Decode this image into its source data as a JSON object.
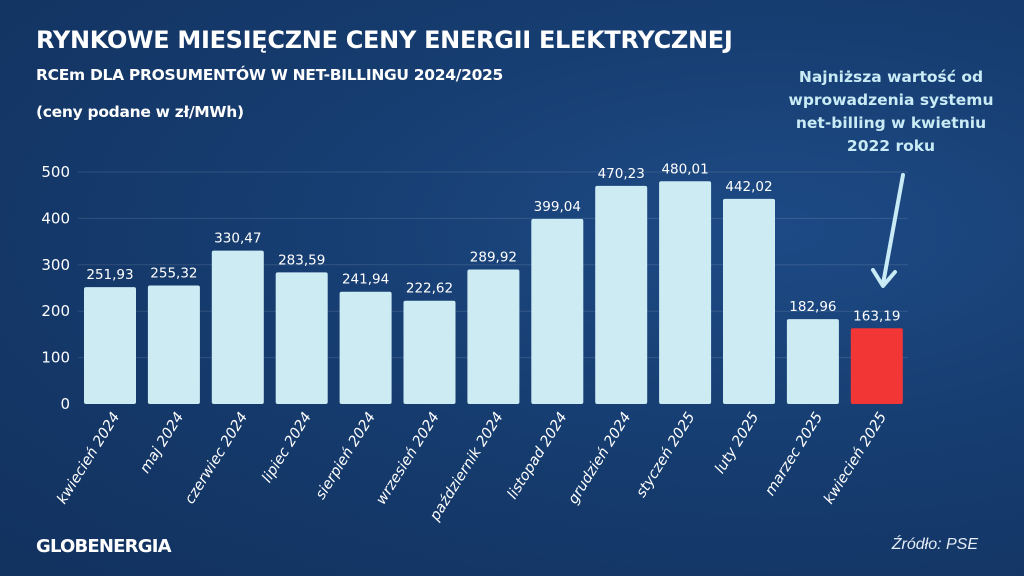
{
  "header": {
    "title": "RYNKOWE MIESIĘCZNE CENY ENERGII ELEKTRYCZNEJ",
    "subtitle": "RCEm DLA PROSUMENTÓW W NET-BILLINGU 2024/2025",
    "unit_note": "(ceny podane w zł/MWh)"
  },
  "annotation": "Najniższa wartość od wprowadzenia systemu net-billing w kwietniu 2022 roku",
  "footer": {
    "logo": "GLOBENERGIA",
    "source": "Źródło: PSE"
  },
  "colors": {
    "bar": "#cdebf3",
    "highlight": "#f23636",
    "background": "#153a6c",
    "annotation": "#c8ebf5"
  },
  "chart_data": {
    "type": "bar",
    "title": "RYNKOWE MIESIĘCZNE CENY ENERGII ELEKTRYCZNEJ",
    "ylabel": "",
    "xlabel": "",
    "ylim": [
      0,
      500
    ],
    "yticks": [
      0,
      100,
      200,
      300,
      400,
      500
    ],
    "grid": true,
    "categories": [
      "kwiecień 2024",
      "maj 2024",
      "czerwiec 2024",
      "lipiec 2024",
      "sierpień 2024",
      "wrzesień 2024",
      "październik 2024",
      "listopad 2024",
      "grudzień 2024",
      "styczeń 2025",
      "luty 2025",
      "marzec 2025",
      "kwiecień 2025"
    ],
    "values": [
      251.93,
      255.32,
      330.47,
      283.59,
      241.94,
      222.62,
      289.92,
      399.04,
      470.23,
      480.01,
      442.02,
      182.96,
      163.19
    ],
    "data_labels": [
      "251,93",
      "255,32",
      "330,47",
      "283,59",
      "241,94",
      "222,62",
      "289,92",
      "399,04",
      "470,23",
      "480,01",
      "442,02",
      "182,96",
      "163,19"
    ],
    "highlight_index": 12
  }
}
